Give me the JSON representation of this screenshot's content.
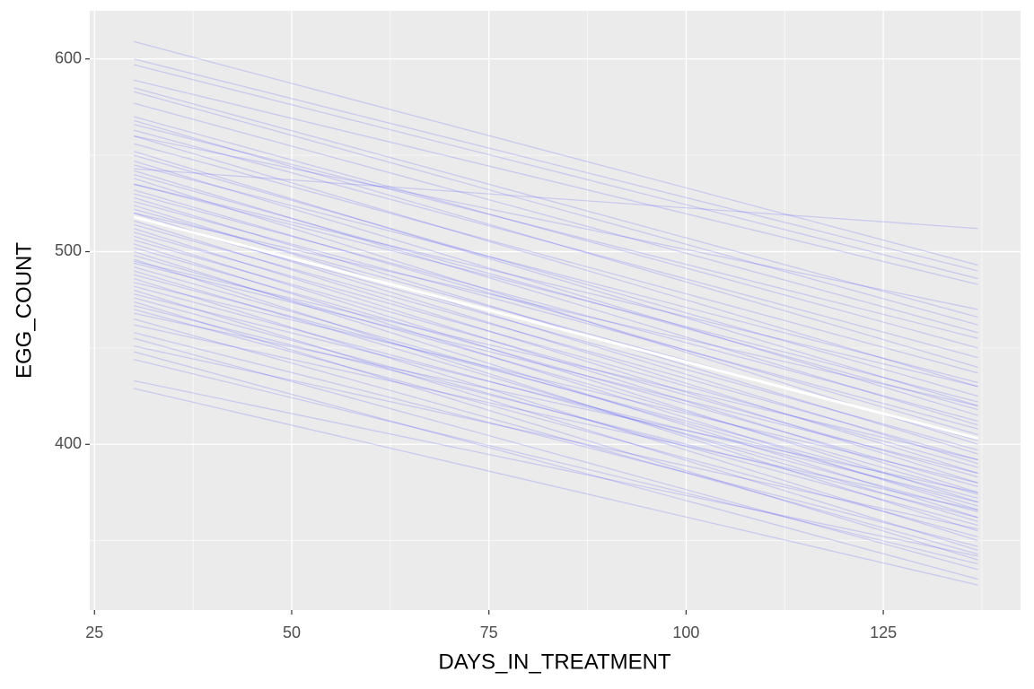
{
  "chart_data": {
    "type": "line",
    "x_label": "DAYS_IN_TREATMENT",
    "y_label": "EGG_COUNT",
    "x": [
      30,
      137
    ],
    "xlim": [
      24.4,
      142.4
    ],
    "ylim": [
      314,
      625
    ],
    "xticks": [
      25,
      50,
      75,
      100,
      125
    ],
    "yticks": [
      400,
      500,
      600
    ],
    "grid": true,
    "color": "#4040ff",
    "line_alpha": 0.2,
    "series": [
      {
        "values": [
          609,
          493
        ]
      },
      {
        "values": [
          600,
          490
        ]
      },
      {
        "values": [
          597,
          486
        ]
      },
      {
        "values": [
          589,
          483
        ]
      },
      {
        "values": [
          585,
          466
        ]
      },
      {
        "values": [
          583,
          462
        ]
      },
      {
        "values": [
          577,
          458
        ]
      },
      {
        "values": [
          570,
          450
        ]
      },
      {
        "values": [
          568,
          440
        ]
      },
      {
        "values": [
          566,
          455
        ]
      },
      {
        "values": [
          563,
          445
        ]
      },
      {
        "values": [
          560,
          430
        ]
      },
      {
        "values": [
          556,
          437
        ]
      },
      {
        "values": [
          552,
          420
        ]
      },
      {
        "values": [
          550,
          425
        ]
      },
      {
        "values": [
          547,
          415
        ]
      },
      {
        "values": [
          545,
          432
        ]
      },
      {
        "values": [
          542,
          410
        ]
      },
      {
        "values": [
          540,
          418
        ]
      },
      {
        "values": [
          538,
          400
        ]
      },
      {
        "values": [
          535,
          422
        ]
      },
      {
        "values": [
          532,
          405
        ]
      },
      {
        "values": [
          530,
          412
        ]
      },
      {
        "values": [
          528,
          395
        ]
      },
      {
        "values": [
          526,
          408
        ]
      },
      {
        "values": [
          524,
          390
        ]
      },
      {
        "values": [
          522,
          402
        ]
      },
      {
        "values": [
          520,
          385
        ]
      },
      {
        "values": [
          518,
          397
        ]
      },
      {
        "values": [
          516,
          380
        ]
      },
      {
        "values": [
          514,
          392
        ]
      },
      {
        "values": [
          512,
          375
        ]
      },
      {
        "values": [
          510,
          388
        ]
      },
      {
        "values": [
          508,
          370
        ]
      },
      {
        "values": [
          506,
          383
        ]
      },
      {
        "values": [
          504,
          366
        ]
      },
      {
        "values": [
          502,
          378
        ]
      },
      {
        "values": [
          500,
          362
        ]
      },
      {
        "values": [
          498,
          374
        ]
      },
      {
        "values": [
          496,
          355
        ]
      },
      {
        "values": [
          494,
          385
        ]
      },
      {
        "values": [
          492,
          368
        ]
      },
      {
        "values": [
          490,
          360
        ]
      },
      {
        "values": [
          488,
          372
        ]
      },
      {
        "values": [
          486,
          350
        ]
      },
      {
        "values": [
          484,
          380
        ]
      },
      {
        "values": [
          482,
          365
        ]
      },
      {
        "values": [
          480,
          345
        ]
      },
      {
        "values": [
          478,
          370
        ]
      },
      {
        "values": [
          476,
          358
        ]
      },
      {
        "values": [
          474,
          340
        ]
      },
      {
        "values": [
          472,
          362
        ]
      },
      {
        "values": [
          470,
          352
        ]
      },
      {
        "values": [
          468,
          375
        ]
      },
      {
        "values": [
          465,
          343
        ]
      },
      {
        "values": [
          462,
          366
        ]
      },
      {
        "values": [
          458,
          347
        ]
      },
      {
        "values": [
          455,
          335
        ]
      },
      {
        "values": [
          451,
          356
        ]
      },
      {
        "values": [
          448,
          330
        ]
      },
      {
        "values": [
          444,
          338
        ]
      },
      {
        "values": [
          433,
          342
        ]
      },
      {
        "values": [
          429,
          327
        ]
      },
      {
        "values": [
          543,
          512
        ]
      },
      {
        "values": [
          520,
          420
        ]
      },
      {
        "values": [
          495,
          392
        ]
      },
      {
        "values": [
          535,
          430
        ]
      },
      {
        "values": [
          560,
          470
        ]
      }
    ],
    "mean_line": {
      "color": "#ffffff",
      "values": [
        518,
        403
      ]
    }
  }
}
